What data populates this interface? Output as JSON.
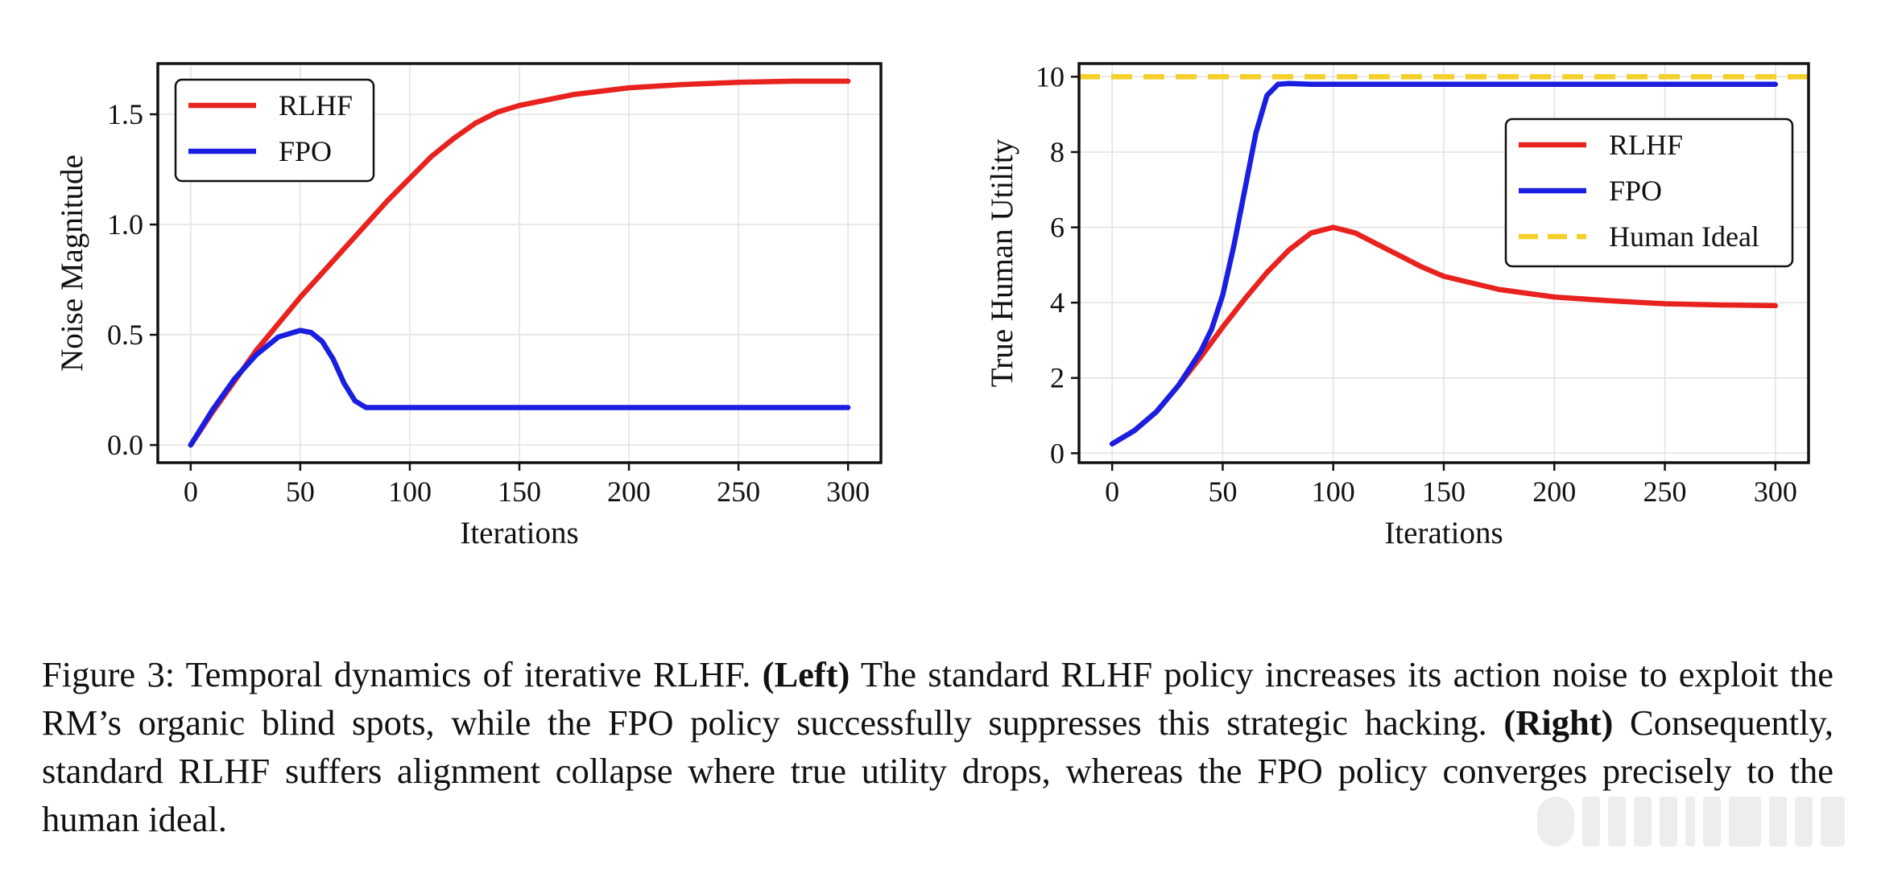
{
  "figure": {
    "caption_label": "Figure 3:",
    "caption_part1": " Temporal dynamics of iterative RLHF. ",
    "caption_left_tag": "(Left)",
    "caption_part2": " The standard RLHF policy increases its action noise to exploit the RM’s organic blind spots, while the FPO policy successfully suppresses this strategic hacking. ",
    "caption_right_tag": "(Right)",
    "caption_part3": " Consequently, standard RLHF suffers alignment collapse where true utility drops, whereas the FPO policy converges precisely to the human ideal."
  },
  "colors": {
    "rlhf": "#e8221e",
    "fpo": "#1a1ee0",
    "ideal": "#f5cf2a",
    "grid": "#e2e2e2"
  },
  "chart_data": [
    {
      "type": "line",
      "xlabel": "Iterations",
      "ylabel": "Noise Magnitude",
      "xlim": [
        -15,
        315
      ],
      "ylim": [
        -0.08,
        1.73
      ],
      "xticks": [
        0,
        50,
        100,
        150,
        200,
        250,
        300
      ],
      "yticks": [
        0.0,
        0.5,
        1.0,
        1.5
      ],
      "ytick_labels": [
        "0.0",
        "0.5",
        "1.0",
        "1.5"
      ],
      "grid": true,
      "legend": "top-left",
      "series": [
        {
          "name": "RLHF",
          "color": "#e8221e",
          "dashed": false,
          "x": [
            0,
            10,
            20,
            30,
            40,
            50,
            60,
            70,
            80,
            90,
            100,
            110,
            120,
            130,
            140,
            150,
            175,
            200,
            225,
            250,
            275,
            300
          ],
          "y": [
            0.0,
            0.15,
            0.29,
            0.43,
            0.55,
            0.67,
            0.78,
            0.89,
            1.0,
            1.11,
            1.21,
            1.31,
            1.39,
            1.46,
            1.51,
            1.54,
            1.59,
            1.62,
            1.635,
            1.645,
            1.65,
            1.65
          ]
        },
        {
          "name": "FPO",
          "color": "#1a1ee0",
          "dashed": false,
          "x": [
            0,
            10,
            20,
            30,
            40,
            50,
            55,
            60,
            65,
            70,
            75,
            80,
            90,
            100,
            150,
            200,
            250,
            300
          ],
          "y": [
            0.0,
            0.16,
            0.3,
            0.41,
            0.49,
            0.52,
            0.51,
            0.47,
            0.39,
            0.28,
            0.2,
            0.17,
            0.17,
            0.17,
            0.17,
            0.17,
            0.17,
            0.17
          ]
        }
      ]
    },
    {
      "type": "line",
      "xlabel": "Iterations",
      "ylabel": "True Human Utility",
      "xlim": [
        -15,
        315
      ],
      "ylim": [
        -0.25,
        10.35
      ],
      "xticks": [
        0,
        50,
        100,
        150,
        200,
        250,
        300
      ],
      "yticks": [
        0,
        2,
        4,
        6,
        8,
        10
      ],
      "ytick_labels": [
        "0",
        "2",
        "4",
        "6",
        "8",
        "10"
      ],
      "grid": true,
      "legend": "center-right",
      "series": [
        {
          "name": "RLHF",
          "color": "#e8221e",
          "dashed": false,
          "x": [
            0,
            10,
            20,
            30,
            40,
            50,
            60,
            70,
            80,
            90,
            100,
            110,
            120,
            130,
            140,
            150,
            175,
            200,
            225,
            250,
            275,
            300
          ],
          "y": [
            0.25,
            0.6,
            1.1,
            1.8,
            2.55,
            3.35,
            4.1,
            4.8,
            5.4,
            5.85,
            6.0,
            5.85,
            5.55,
            5.25,
            4.95,
            4.7,
            4.35,
            4.15,
            4.05,
            3.97,
            3.94,
            3.92
          ]
        },
        {
          "name": "FPO",
          "color": "#1a1ee0",
          "dashed": false,
          "x": [
            0,
            10,
            20,
            30,
            40,
            45,
            50,
            55,
            60,
            65,
            70,
            75,
            80,
            90,
            100,
            150,
            200,
            250,
            300
          ],
          "y": [
            0.25,
            0.6,
            1.1,
            1.8,
            2.7,
            3.3,
            4.2,
            5.5,
            7.0,
            8.5,
            9.5,
            9.8,
            9.82,
            9.8,
            9.8,
            9.8,
            9.8,
            9.8,
            9.8
          ]
        },
        {
          "name": "Human Ideal",
          "color": "#f5cf2a",
          "dashed": true,
          "x": [
            -15,
            315
          ],
          "y": [
            10,
            10
          ]
        }
      ]
    }
  ]
}
